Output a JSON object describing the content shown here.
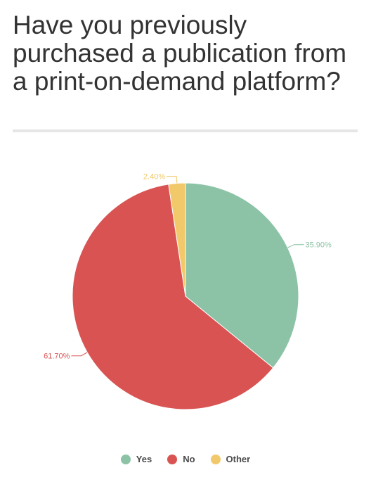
{
  "chart_data": {
    "type": "pie",
    "title": "Have you previously purchased a publication from a print-on-demand platform?",
    "categories": [
      "Yes",
      "No",
      "Other"
    ],
    "values": [
      35.9,
      61.7,
      2.4
    ],
    "data_labels": [
      "35.90%",
      "61.70%",
      "2.40%"
    ],
    "colors": [
      "#8cc3a6",
      "#d95353",
      "#f2c96a"
    ],
    "legend_position": "bottom"
  }
}
